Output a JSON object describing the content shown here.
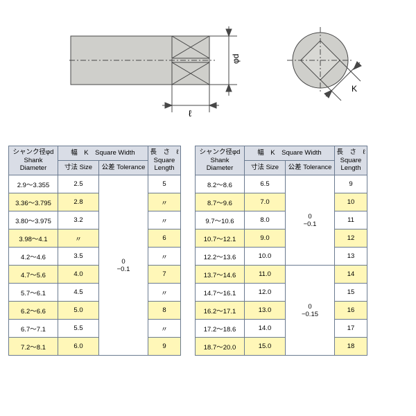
{
  "diagram": {
    "fill_color": "#cfcfcb",
    "line_color": "#474747",
    "label_phi_d": "φd",
    "label_ell": "ℓ",
    "label_K": "K"
  },
  "tables": {
    "header": {
      "shank_line1": "シャンク径φd",
      "shank_line2": "Shank",
      "shank_line3": "Diameter",
      "width_line1": "幅　K　Square Width",
      "size_line1": "寸法 Size",
      "tol_line1": "公差 Tolerance",
      "length_line1": "長　さ　ℓ",
      "length_line2": "Square",
      "length_line3": "Length"
    },
    "header_bg": "#d9dde6",
    "highlight_bg": "#fff7b8",
    "border_color": "#6a7a90",
    "left": {
      "tolerance_top": "0",
      "tolerance_bot": "−0.1",
      "rows": [
        {
          "d": "2.9～3.355",
          "size": "2.5",
          "len": "5",
          "hl": false
        },
        {
          "d": "3.36～3.795",
          "size": "2.8",
          "len": "〃",
          "hl": true
        },
        {
          "d": "3.80～3.975",
          "size": "3.2",
          "len": "〃",
          "hl": false
        },
        {
          "d": "3.98～4.1",
          "size": "〃",
          "len": "6",
          "hl": true
        },
        {
          "d": "4.2～4.6",
          "size": "3.5",
          "len": "〃",
          "hl": false
        },
        {
          "d": "4.7～5.6",
          "size": "4.0",
          "len": "7",
          "hl": true
        },
        {
          "d": "5.7～6.1",
          "size": "4.5",
          "len": "〃",
          "hl": false
        },
        {
          "d": "6.2～6.6",
          "size": "5.0",
          "len": "8",
          "hl": true
        },
        {
          "d": "6.7～7.1",
          "size": "5.5",
          "len": "〃",
          "hl": false
        },
        {
          "d": "7.2～8.1",
          "size": "6.0",
          "len": "9",
          "hl": true
        }
      ]
    },
    "right": {
      "tolerance1_top": "0",
      "tolerance1_bot": "−0.1",
      "tolerance2_top": "0",
      "tolerance2_bot": "−0.15",
      "rows": [
        {
          "d": "8.2～8.6",
          "size": "6.5",
          "len": "9",
          "hl": false
        },
        {
          "d": "8.7～9.6",
          "size": "7.0",
          "len": "10",
          "hl": true
        },
        {
          "d": "9.7～10.6",
          "size": "8.0",
          "len": "11",
          "hl": false
        },
        {
          "d": "10.7～12.1",
          "size": "9.0",
          "len": "12",
          "hl": true
        },
        {
          "d": "12.2～13.6",
          "size": "10.0",
          "len": "13",
          "hl": false
        },
        {
          "d": "13.7～14.6",
          "size": "11.0",
          "len": "14",
          "hl": true
        },
        {
          "d": "14.7～16.1",
          "size": "12.0",
          "len": "15",
          "hl": false
        },
        {
          "d": "16.2～17.1",
          "size": "13.0",
          "len": "16",
          "hl": true
        },
        {
          "d": "17.2～18.6",
          "size": "14.0",
          "len": "17",
          "hl": false
        },
        {
          "d": "18.7～20.0",
          "size": "15.0",
          "len": "18",
          "hl": true
        }
      ]
    }
  }
}
